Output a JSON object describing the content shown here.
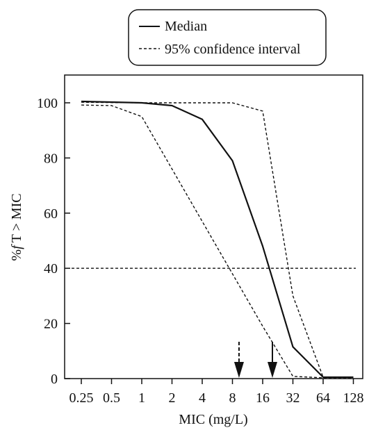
{
  "chart_data": {
    "type": "line",
    "xlabel": "MIC (mg/L)",
    "ylabel_prefix": "%",
    "ylabel_f": "f",
    "ylabel_rest": "T > MIC",
    "x_scale": "log2",
    "x_ticks": [
      0.25,
      0.5,
      1,
      2,
      4,
      8,
      16,
      32,
      64,
      128
    ],
    "x_tick_labels": [
      "0.25",
      "0.5",
      "1",
      "2",
      "4",
      "8",
      "16",
      "32",
      "64",
      "128"
    ],
    "y_ticks": [
      0,
      20,
      40,
      60,
      80,
      100
    ],
    "y_tick_labels": [
      "0",
      "20",
      "40",
      "60",
      "80",
      "100"
    ],
    "xlim": [
      0.2,
      160
    ],
    "ylim": [
      0,
      110
    ],
    "legend": {
      "position": "top-center",
      "entries": [
        {
          "label": "Median",
          "style": "solid"
        },
        {
          "label": "95% confidence interval",
          "style": "dashed"
        }
      ]
    },
    "series": [
      {
        "style": "solid",
        "points": [
          [
            0.25,
            100.5
          ],
          [
            1,
            100
          ],
          [
            2,
            99
          ],
          [
            4,
            94
          ],
          [
            8,
            79
          ],
          [
            16,
            48
          ],
          [
            32,
            11.5
          ],
          [
            64,
            0.5
          ],
          [
            128,
            0.5
          ]
        ]
      },
      {
        "style": "dashed",
        "points": [
          [
            0.25,
            100.2
          ],
          [
            1,
            100
          ],
          [
            8,
            100
          ],
          [
            16,
            97
          ],
          [
            32,
            30
          ],
          [
            64,
            0.5
          ],
          [
            128,
            0.5
          ]
        ]
      },
      {
        "style": "dashed",
        "points": [
          [
            0.25,
            99.2
          ],
          [
            0.5,
            99
          ],
          [
            1,
            95
          ],
          [
            16,
            19
          ],
          [
            32,
            0.8
          ],
          [
            64,
            0.3
          ],
          [
            128,
            0.3
          ]
        ]
      }
    ],
    "reference_line": {
      "y": 40,
      "style": "dashed"
    },
    "arrows": [
      {
        "x": 9.3,
        "style": "dashed"
      },
      {
        "x": 20,
        "style": "solid"
      }
    ],
    "colors": {
      "line": "#111111",
      "axes": "#111111",
      "background": "#ffffff"
    }
  }
}
